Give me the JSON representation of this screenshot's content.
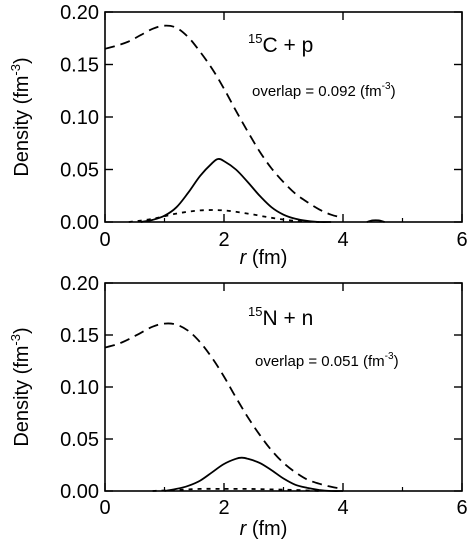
{
  "chart_data": [
    {
      "type": "line",
      "label_prefix_sup": "15",
      "label_main": "C + p",
      "overlap_text": "overlap = 0.092 (fm",
      "overlap_sup": "-3",
      "overlap_close": ")",
      "xlabel_italic": "r",
      "xlabel_rest": " (fm)",
      "ylabel": "Density (fm",
      "ylabel_sup": "-3",
      "ylabel_close": ")",
      "xlim": [
        0,
        6
      ],
      "ylim": [
        0,
        0.2
      ],
      "xticks": [
        "0",
        "2",
        "4",
        "6"
      ],
      "yticks": [
        "0.00",
        "0.05",
        "0.10",
        "0.15",
        "0.20"
      ],
      "series": [
        {
          "style": "long-dash",
          "x": [
            0,
            0.2,
            0.4,
            0.6,
            0.8,
            1.0,
            1.2,
            1.4,
            1.6,
            1.8,
            2.0,
            2.2,
            2.4,
            2.6,
            2.8,
            3.0,
            3.2,
            3.4,
            3.6,
            3.8,
            4.0
          ],
          "y": [
            0.165,
            0.168,
            0.172,
            0.178,
            0.184,
            0.187,
            0.185,
            0.176,
            0.162,
            0.146,
            0.127,
            0.106,
            0.086,
            0.067,
            0.051,
            0.038,
            0.027,
            0.019,
            0.012,
            0.007,
            0.004
          ]
        },
        {
          "style": "solid",
          "x": [
            0.6,
            0.8,
            1.0,
            1.2,
            1.4,
            1.6,
            1.8,
            1.9,
            2.0,
            2.2,
            2.4,
            2.6,
            2.8,
            3.0,
            3.2,
            3.4,
            3.6,
            3.8
          ],
          "y": [
            0.0,
            0.002,
            0.006,
            0.014,
            0.028,
            0.044,
            0.056,
            0.06,
            0.058,
            0.05,
            0.038,
            0.025,
            0.014,
            0.007,
            0.003,
            0.001,
            0.0,
            0.0
          ]
        },
        {
          "style": "short-dash",
          "x": [
            0.4,
            0.8,
            1.2,
            1.6,
            2.0,
            2.4,
            2.8,
            3.2,
            3.6
          ],
          "y": [
            0.0,
            0.003,
            0.008,
            0.011,
            0.011,
            0.008,
            0.004,
            0.001,
            0.0
          ]
        },
        {
          "style": "solid",
          "x": [
            4.4,
            4.5,
            4.6,
            4.7
          ],
          "y": [
            0.0,
            0.0015,
            0.0015,
            0.0
          ]
        }
      ]
    },
    {
      "type": "line",
      "label_prefix_sup": "15",
      "label_main": "N + n",
      "overlap_text": "overlap = 0.051 (fm",
      "overlap_sup": "-3",
      "overlap_close": ")",
      "xlabel_italic": "r",
      "xlabel_rest": " (fm)",
      "ylabel": "Density (fm",
      "ylabel_sup": "-3",
      "ylabel_close": ")",
      "xlim": [
        0,
        6
      ],
      "ylim": [
        0,
        0.2
      ],
      "xticks": [
        "0",
        "2",
        "4",
        "6"
      ],
      "yticks": [
        "0.00",
        "0.05",
        "0.10",
        "0.15",
        "0.20"
      ],
      "series": [
        {
          "style": "long-dash",
          "x": [
            0,
            0.2,
            0.4,
            0.6,
            0.8,
            1.0,
            1.2,
            1.4,
            1.6,
            1.8,
            2.0,
            2.2,
            2.4,
            2.6,
            2.8,
            3.0,
            3.2,
            3.4,
            3.6,
            3.8,
            4.0
          ],
          "y": [
            0.138,
            0.141,
            0.146,
            0.152,
            0.158,
            0.161,
            0.16,
            0.154,
            0.143,
            0.128,
            0.11,
            0.09,
            0.071,
            0.054,
            0.039,
            0.027,
            0.018,
            0.011,
            0.007,
            0.004,
            0.002
          ]
        },
        {
          "style": "solid",
          "x": [
            1.0,
            1.2,
            1.4,
            1.6,
            1.8,
            2.0,
            2.2,
            2.3,
            2.4,
            2.6,
            2.8,
            3.0,
            3.2,
            3.4,
            3.6,
            3.8,
            4.0
          ],
          "y": [
            0.0,
            0.002,
            0.005,
            0.01,
            0.018,
            0.026,
            0.031,
            0.032,
            0.031,
            0.027,
            0.02,
            0.012,
            0.006,
            0.003,
            0.001,
            0.0,
            0.0
          ]
        },
        {
          "style": "short-dash",
          "x": [
            0.8,
            1.2,
            1.6,
            2.0,
            2.4,
            2.8,
            3.2,
            3.6
          ],
          "y": [
            0.0,
            0.001,
            0.002,
            0.002,
            0.002,
            0.0015,
            0.001,
            0.0
          ]
        }
      ]
    }
  ]
}
